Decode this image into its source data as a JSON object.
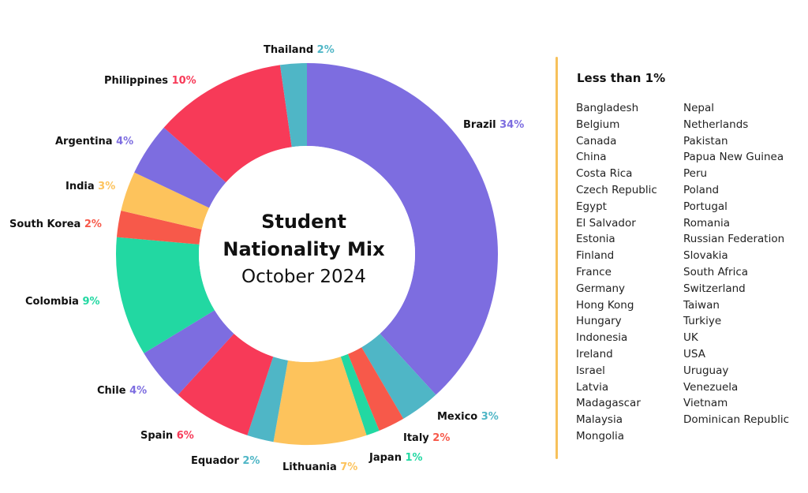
{
  "chart_data": {
    "type": "pie",
    "style": "donut",
    "title": "Student Nationality Mix",
    "subtitle": "October 2024",
    "slices": [
      {
        "label": "Brazil",
        "value": 34,
        "value_label": "34%",
        "color": "#7d6de0"
      },
      {
        "label": "Mexico",
        "value": 3,
        "value_label": "3%",
        "color": "#4fb6c6"
      },
      {
        "label": "Italy",
        "value": 2,
        "value_label": "2%",
        "color": "#f7594a"
      },
      {
        "label": "Japan",
        "value": 1,
        "value_label": "1%",
        "color": "#22d8a2"
      },
      {
        "label": "Lithuania",
        "value": 7,
        "value_label": "7%",
        "color": "#fdc35c"
      },
      {
        "label": "Equador",
        "value": 2,
        "value_label": "2%",
        "color": "#4fb6c6"
      },
      {
        "label": "Spain",
        "value": 6,
        "value_label": "6%",
        "color": "#f73a58"
      },
      {
        "label": "Chile",
        "value": 4,
        "value_label": "4%",
        "color": "#7d6de0"
      },
      {
        "label": "Colombia",
        "value": 9,
        "value_label": "9%",
        "color": "#22d8a2"
      },
      {
        "label": "South Korea",
        "value": 2,
        "value_label": "2%",
        "color": "#f7594a"
      },
      {
        "label": "India",
        "value": 3,
        "value_label": "3%",
        "color": "#fdc35c"
      },
      {
        "label": "Argentina",
        "value": 4,
        "value_label": "4%",
        "color": "#7d6de0"
      },
      {
        "label": "Philippines",
        "value": 10,
        "value_label": "10%",
        "color": "#f73a58"
      },
      {
        "label": "Thailand",
        "value": 2,
        "value_label": "2%",
        "color": "#4fb6c6"
      }
    ]
  },
  "side_panel": {
    "heading": "Less than 1%",
    "column_left": [
      "Bangladesh",
      "Belgium",
      "Canada",
      "China",
      "Costa Rica",
      "Czech Republic",
      "Egypt",
      "El Salvador",
      "Estonia",
      "Finland",
      "France",
      "Germany",
      "Hong Kong",
      "Hungary",
      "Indonesia",
      "Ireland",
      "Israel",
      "Latvia",
      "Madagascar",
      "Malaysia",
      "Mongolia"
    ],
    "column_right": [
      "Nepal",
      "Netherlands",
      "Pakistan",
      "Papua New Guinea",
      "Peru",
      "Poland",
      "Portugal",
      "Romania",
      "Russian Federation",
      "Slovakia",
      "South Africa",
      "Switzerland",
      "Taiwan",
      "Turkiye",
      "UK",
      "USA",
      "Uruguay",
      "Venezuela",
      "Vietnam",
      "Dominican Republic"
    ]
  },
  "colors": {
    "divider": "#f7c15b"
  }
}
